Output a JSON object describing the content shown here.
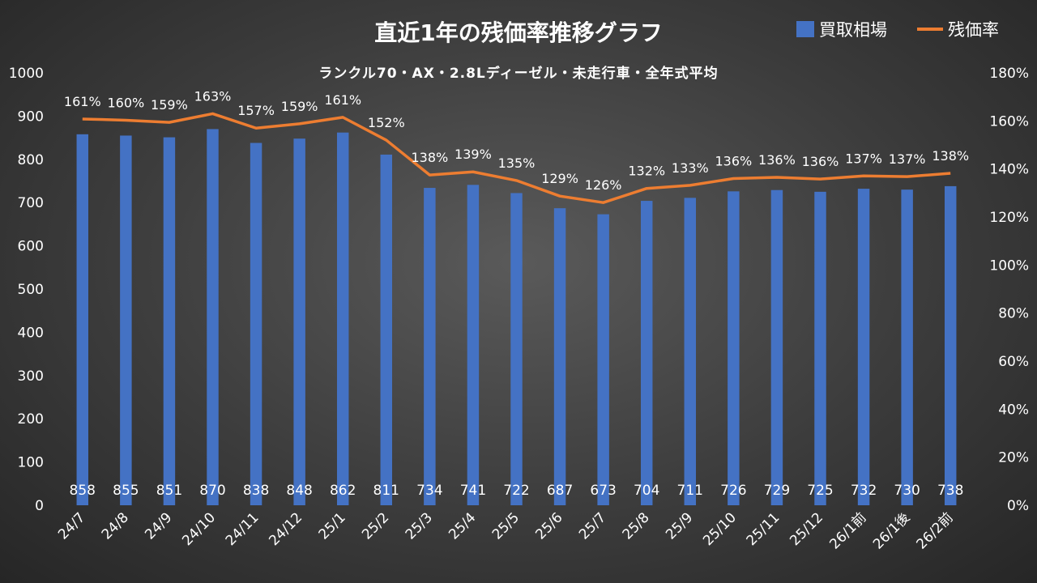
{
  "chart_data": {
    "type": "bar",
    "title": "直近1年の残価率推移グラフ",
    "subtitle": "ランクル70・AX・2.8Lディーゼル・未走行車・全年式平均",
    "categories": [
      "24/7",
      "24/8",
      "24/9",
      "24/10",
      "24/11",
      "24/12",
      "25/1",
      "25/2",
      "25/3",
      "25/4",
      "25/5",
      "25/6",
      "25/7",
      "25/8",
      "25/9",
      "25/10",
      "25/11",
      "25/12",
      "26/1前",
      "26/1後",
      "26/2前"
    ],
    "series": [
      {
        "name": "買取相場",
        "type": "bar",
        "axis": "left",
        "color": "#4472C4",
        "values": [
          858,
          855,
          851,
          870,
          838,
          848,
          862,
          811,
          734,
          741,
          722,
          687,
          673,
          704,
          711,
          726,
          729,
          725,
          732,
          730,
          738
        ],
        "labels": [
          "858",
          "855",
          "851",
          "870",
          "838",
          "848",
          "862",
          "811",
          "734",
          "741",
          "722",
          "687",
          "673",
          "704",
          "711",
          "726",
          "729",
          "725",
          "732",
          "730",
          "738"
        ]
      },
      {
        "name": "残価率",
        "type": "line",
        "axis": "right",
        "color": "#ED7D31",
        "values": [
          160.8,
          160.3,
          159.4,
          163,
          157,
          158.8,
          161.5,
          152,
          137.5,
          138.8,
          135.2,
          128.7,
          126,
          131.9,
          133.2,
          136,
          136.5,
          135.8,
          137.1,
          136.8,
          138.2
        ],
        "labels": [
          "161%",
          "160%",
          "159%",
          "163%",
          "157%",
          "159%",
          "161%",
          "152%",
          "138%",
          "139%",
          "135%",
          "129%",
          "126%",
          "132%",
          "133%",
          "136%",
          "136%",
          "136%",
          "137%",
          "137%",
          "138%"
        ]
      }
    ],
    "y_left": {
      "lim": [
        0,
        1000
      ],
      "ticks": [
        "0",
        "100",
        "200",
        "300",
        "400",
        "500",
        "600",
        "700",
        "800",
        "900",
        "1000"
      ]
    },
    "y_right": {
      "lim": [
        0,
        180
      ],
      "ticks": [
        "0%",
        "20%",
        "40%",
        "60%",
        "80%",
        "100%",
        "120%",
        "140%",
        "160%",
        "180%"
      ]
    },
    "grid": false,
    "legend": "top-right"
  }
}
